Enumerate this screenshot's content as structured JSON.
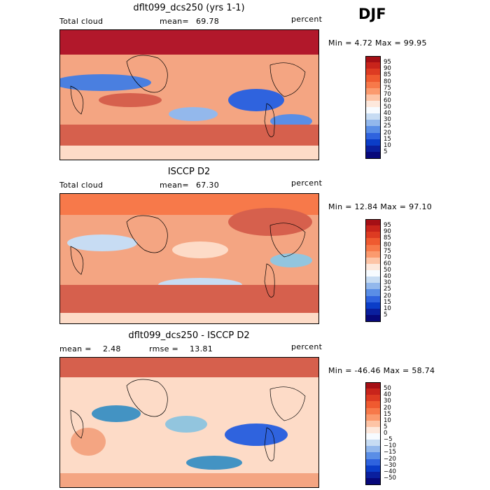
{
  "season": "DJF",
  "panels": [
    {
      "title": "dflt099_dcs250 (yrs 1-1)",
      "left_label": "Total cloud",
      "center_label": "mean=",
      "center_value": "69.78",
      "right_label": "percent",
      "range_text": "Min =    4.72 Max =  99.95",
      "type": "abs"
    },
    {
      "title": "ISCCP D2",
      "left_label": "Total cloud",
      "center_label": "mean=",
      "center_value": "67.30",
      "right_label": "percent",
      "range_text": "Min =  12.84 Max =  97.10",
      "type": "abs"
    },
    {
      "title": "dflt099_dcs250 - ISCCP D2",
      "left_label": "mean =",
      "left_value": "2.48",
      "center_label": "rmse =",
      "center_value": "13.81",
      "right_label": "percent",
      "range_text": "Min = -46.46 Max =  58.74",
      "type": "diff"
    }
  ],
  "colorbars": {
    "abs": {
      "labels": [
        "95",
        "90",
        "85",
        "80",
        "75",
        "70",
        "60",
        "50",
        "40",
        "30",
        "25",
        "20",
        "15",
        "10",
        "5"
      ],
      "colors": [
        "#a50f15",
        "#c8241b",
        "#dd3b22",
        "#ef5a30",
        "#f7794a",
        "#fb9a6e",
        "#fdc4a6",
        "#fde8dc",
        "#f7fbff",
        "#c7dcf3",
        "#93b8ec",
        "#5a8ee6",
        "#2f63de",
        "#0b3dc8",
        "#0a1f9e",
        "#07087a"
      ]
    },
    "diff": {
      "labels": [
        "50",
        "40",
        "30",
        "20",
        "15",
        "10",
        "5",
        "0",
        "−5",
        "−10",
        "−15",
        "−20",
        "−30",
        "−40",
        "−50"
      ],
      "colors": [
        "#a50f15",
        "#c8241b",
        "#dd3b22",
        "#ef5a30",
        "#f7794a",
        "#fb9a6e",
        "#fdc4a6",
        "#fde8dc",
        "#f7fbff",
        "#c7dcf3",
        "#93b8ec",
        "#5a8ee6",
        "#2f63de",
        "#0b3dc8",
        "#0a1f9e",
        "#07087a"
      ]
    }
  }
}
